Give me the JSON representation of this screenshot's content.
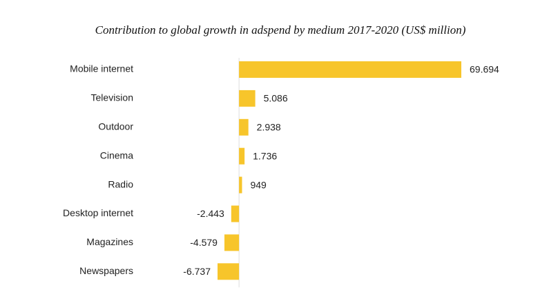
{
  "chart_data": {
    "type": "bar",
    "orientation": "horizontal",
    "title": "Contribution to global growth in adspend by medium 2017-2020 (US$ million)",
    "categories": [
      "Mobile internet",
      "Television",
      "Outdoor",
      "Cinema",
      "Radio",
      "Desktop internet",
      "Magazines",
      "Newspapers"
    ],
    "values": [
      69694,
      5086,
      2938,
      1736,
      949,
      -2443,
      -4579,
      -6737
    ],
    "value_labels": [
      "69.694",
      "5.086",
      "2.938",
      "1.736",
      "949",
      "-2.443",
      "-4.579",
      "-6.737"
    ],
    "color": "#f7c52b"
  }
}
